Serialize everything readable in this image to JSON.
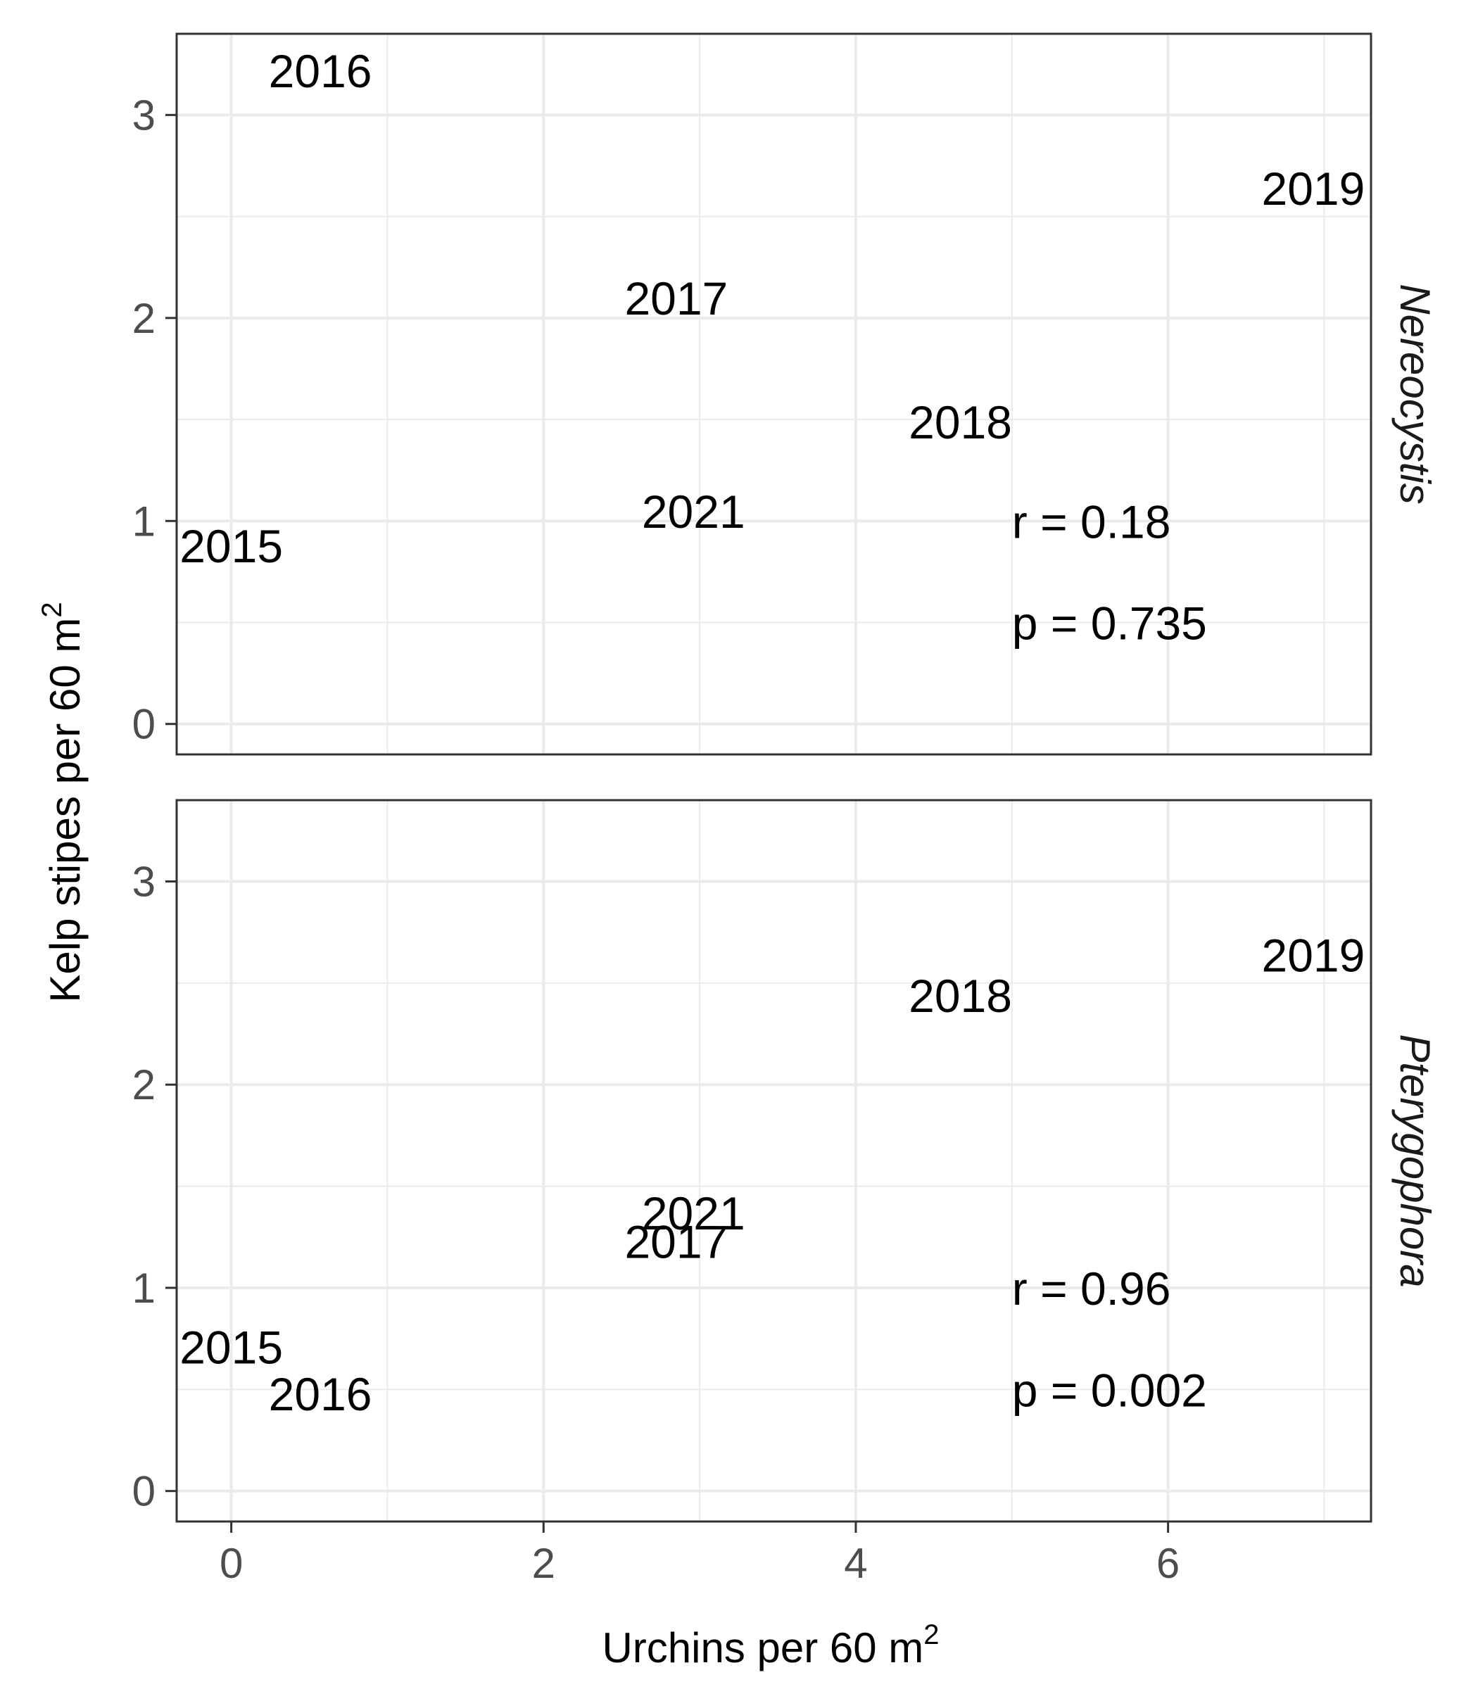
{
  "chart_data": {
    "type": "scatter",
    "marker": "text-labels",
    "xlabel": "Urchins per 60 m",
    "xlabel_sup": "2",
    "ylabel": "Kelp stipes per 60 m",
    "ylabel_sup": "2",
    "xlim": [
      -0.35,
      7.3
    ],
    "ylim": [
      -0.15,
      3.4
    ],
    "xticks": [
      0,
      2,
      4,
      6
    ],
    "yticks": [
      0,
      1,
      2,
      3
    ],
    "grid": true,
    "colors": {
      "text": "#000000",
      "grid": "#ebebeb",
      "border": "#333333",
      "tick_text": "#4d4d4d"
    },
    "panels": [
      {
        "facet": "Nereocystis",
        "points": [
          {
            "label": "2015",
            "x": 0.0,
            "y": 0.88
          },
          {
            "label": "2016",
            "x": 0.57,
            "y": 3.22
          },
          {
            "label": "2017",
            "x": 2.85,
            "y": 2.1
          },
          {
            "label": "2018",
            "x": 4.67,
            "y": 1.49
          },
          {
            "label": "2019",
            "x": 6.93,
            "y": 2.64
          },
          {
            "label": "2021",
            "x": 2.96,
            "y": 1.05
          }
        ],
        "stats": {
          "r": "r = 0.18",
          "p": "p = 0.735"
        }
      },
      {
        "facet": "Pterygophora",
        "points": [
          {
            "label": "2015",
            "x": 0.0,
            "y": 0.71
          },
          {
            "label": "2016",
            "x": 0.57,
            "y": 0.48
          },
          {
            "label": "2017",
            "x": 2.85,
            "y": 1.23
          },
          {
            "label": "2018",
            "x": 4.67,
            "y": 2.44
          },
          {
            "label": "2019",
            "x": 6.93,
            "y": 2.64
          },
          {
            "label": "2021",
            "x": 2.96,
            "y": 1.37
          }
        ],
        "stats": {
          "r": "r = 0.96",
          "p": "p = 0.002"
        }
      }
    ]
  }
}
